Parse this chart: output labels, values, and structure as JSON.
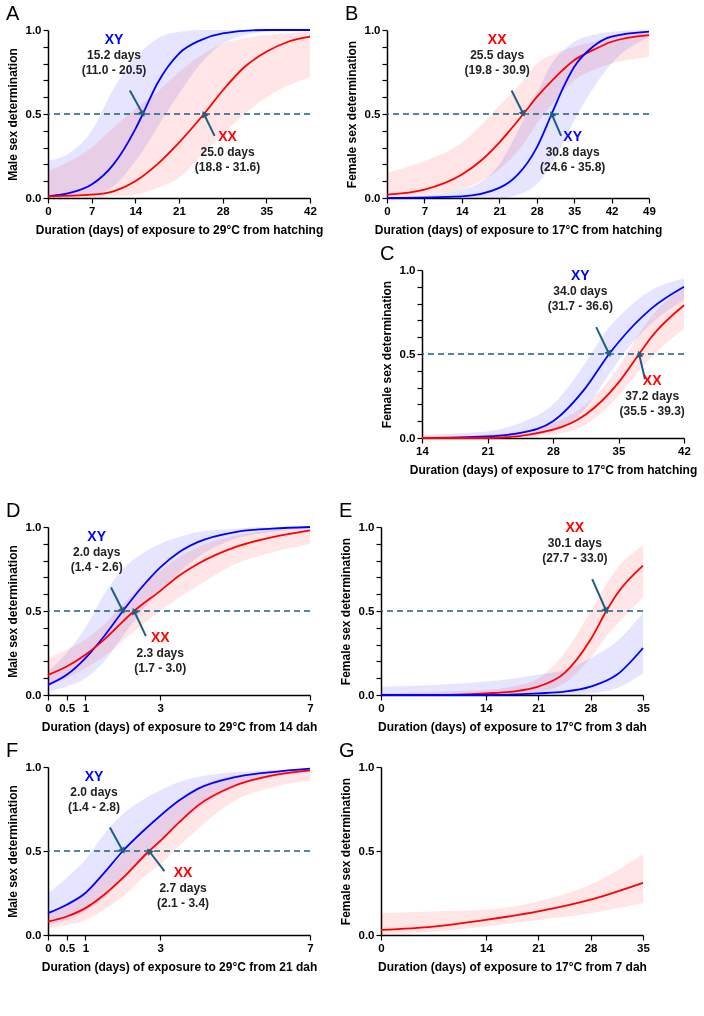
{
  "chart_data": [
    {
      "type": "line",
      "title": "A",
      "xlabel": "Duration (days) of exposure to 29°C from hatching",
      "ylabel": "Male sex determination",
      "xlim": [
        0,
        42
      ],
      "xticks": [
        0,
        7,
        14,
        21,
        28,
        35,
        42
      ],
      "ylim": [
        0,
        1
      ],
      "yticks": [
        {
          "value": 0,
          "label": "0.0"
        },
        {
          "value": 0.1,
          "label": null
        },
        {
          "value": 0.2,
          "label": null
        },
        {
          "value": 0.3,
          "label": null
        },
        {
          "value": 0.4,
          "label": null
        },
        {
          "value": 0.5,
          "label": "0.5"
        },
        {
          "value": 0.6,
          "label": null
        },
        {
          "value": 0.7,
          "label": null
        },
        {
          "value": 0.8,
          "label": null
        },
        {
          "value": 0.9,
          "label": null
        },
        {
          "value": 1,
          "label": "1.0"
        }
      ],
      "series": [
        {
          "name": "XY",
          "color": "#0000ff",
          "x": [
            0,
            3.5,
            7,
            10.5,
            14,
            15.2,
            17.5,
            21,
            24.5,
            28,
            35,
            42
          ],
          "values": [
            0.01,
            0.03,
            0.08,
            0.2,
            0.41,
            0.5,
            0.68,
            0.86,
            0.94,
            0.98,
            1.0,
            1.0
          ],
          "lower": [
            0,
            0.01,
            0.02,
            0.07,
            0.22,
            0.28,
            0.42,
            0.62,
            0.8,
            0.92,
            0.99,
            1.0
          ],
          "upper": [
            0.22,
            0.27,
            0.4,
            0.65,
            0.84,
            0.88,
            0.95,
            0.99,
            1.0,
            1.0,
            1.0,
            1.0
          ]
        },
        {
          "name": "XX",
          "color": "#ff0000",
          "x": [
            0,
            7,
            10.5,
            14,
            17.5,
            21,
            25,
            28,
            31.5,
            35,
            38.5,
            42
          ],
          "values": [
            0.01,
            0.02,
            0.04,
            0.1,
            0.2,
            0.33,
            0.5,
            0.64,
            0.78,
            0.87,
            0.93,
            0.96
          ],
          "lower": [
            0,
            0,
            0.01,
            0.02,
            0.06,
            0.12,
            0.27,
            0.38,
            0.5,
            0.6,
            0.67,
            0.72
          ],
          "upper": [
            0.16,
            0.3,
            0.42,
            0.53,
            0.63,
            0.75,
            0.86,
            0.92,
            0.95,
            0.97,
            0.98,
            0.99
          ]
        }
      ],
      "ref_lines": [
        {
          "axis": "y",
          "value": 0.5,
          "color": "#1f5f80",
          "line_style": "dashed"
        }
      ],
      "annotations": [
        {
          "text": "15.2 days\n(11.0 - 20.5)",
          "x": 15.2,
          "y": 0.5
        },
        {
          "text": "25.0 days\n(18.8 - 31.6)",
          "x": 25.0,
          "y": 0.5
        }
      ]
    },
    {
      "type": "line",
      "title": "B",
      "xlabel": "Duration (days) of exposure to 17°C from hatching",
      "ylabel": "Female sex determination",
      "xlim": [
        0,
        49
      ],
      "xticks": [
        0,
        7,
        14,
        21,
        28,
        35,
        42,
        49
      ],
      "ylim": [
        0,
        1
      ],
      "yticks": [
        {
          "value": 0,
          "label": "0.0"
        },
        {
          "value": 0.1,
          "label": null
        },
        {
          "value": 0.2,
          "label": null
        },
        {
          "value": 0.3,
          "label": null
        },
        {
          "value": 0.4,
          "label": null
        },
        {
          "value": 0.5,
          "label": "0.5"
        },
        {
          "value": 0.6,
          "label": null
        },
        {
          "value": 0.7,
          "label": null
        },
        {
          "value": 0.8,
          "label": null
        },
        {
          "value": 0.9,
          "label": null
        },
        {
          "value": 1,
          "label": "1.0"
        }
      ],
      "series": [
        {
          "name": "XX",
          "color": "#ff0000",
          "x": [
            0,
            7,
            14,
            17.5,
            21,
            25.5,
            28,
            31.5,
            35,
            38.5,
            42,
            49
          ],
          "values": [
            0.02,
            0.05,
            0.14,
            0.22,
            0.33,
            0.5,
            0.6,
            0.72,
            0.82,
            0.88,
            0.93,
            0.97
          ],
          "lower": [
            0,
            0.02,
            0.05,
            0.1,
            0.17,
            0.32,
            0.44,
            0.58,
            0.7,
            0.76,
            0.8,
            0.84
          ],
          "upper": [
            0.15,
            0.22,
            0.33,
            0.43,
            0.55,
            0.7,
            0.8,
            0.86,
            0.9,
            0.93,
            0.96,
            0.99
          ]
        },
        {
          "name": "XY",
          "color": "#0000ff",
          "x": [
            0,
            14,
            21,
            24.5,
            28,
            30.8,
            33,
            35,
            38.5,
            42,
            49
          ],
          "values": [
            0,
            0.01,
            0.06,
            0.14,
            0.3,
            0.5,
            0.66,
            0.78,
            0.9,
            0.96,
            0.99
          ],
          "lower": [
            0,
            0,
            0,
            0.02,
            0.08,
            0.2,
            0.33,
            0.46,
            0.65,
            0.8,
            0.96
          ],
          "upper": [
            0,
            0.05,
            0.2,
            0.4,
            0.62,
            0.8,
            0.88,
            0.93,
            0.97,
            0.99,
            1.0
          ]
        }
      ],
      "ref_lines": [
        {
          "axis": "y",
          "value": 0.5,
          "color": "#1f5f80",
          "line_style": "dashed"
        }
      ],
      "annotations": [
        {
          "text": "25.5 days\n(19.8 - 30.9)",
          "x": 25.5,
          "y": 0.5
        },
        {
          "text": "30.8 days\n(24.6 - 35.8)",
          "x": 30.8,
          "y": 0.5
        }
      ]
    },
    {
      "type": "line",
      "title": "C",
      "xlabel": "Duration (days) of exposure to 17°C from hatching",
      "ylabel": "Female sex determination",
      "xlim": [
        14,
        42
      ],
      "xticks": [
        14,
        21,
        28,
        35,
        42
      ],
      "ylim": [
        0,
        1
      ],
      "yticks": [
        {
          "value": 0,
          "label": "0.0"
        },
        {
          "value": 0.1,
          "label": null
        },
        {
          "value": 0.2,
          "label": null
        },
        {
          "value": 0.3,
          "label": null
        },
        {
          "value": 0.4,
          "label": null
        },
        {
          "value": 0.5,
          "label": "0.5"
        },
        {
          "value": 0.6,
          "label": null
        },
        {
          "value": 0.7,
          "label": null
        },
        {
          "value": 0.8,
          "label": null
        },
        {
          "value": 0.9,
          "label": null
        },
        {
          "value": 1,
          "label": "1.0"
        }
      ],
      "series": [
        {
          "name": "XY",
          "color": "#0000ff",
          "x": [
            14,
            21,
            24.5,
            28,
            31.5,
            34,
            35,
            38.5,
            42
          ],
          "values": [
            0,
            0.01,
            0.03,
            0.1,
            0.3,
            0.5,
            0.57,
            0.77,
            0.9
          ],
          "lower": [
            0,
            0,
            0.01,
            0.04,
            0.18,
            0.38,
            0.46,
            0.68,
            0.82
          ],
          "upper": [
            0.02,
            0.04,
            0.09,
            0.2,
            0.45,
            0.66,
            0.72,
            0.88,
            0.95
          ]
        },
        {
          "name": "XX",
          "color": "#ff0000",
          "x": [
            14,
            21,
            28,
            31.5,
            35,
            37.2,
            38.5,
            42
          ],
          "values": [
            0,
            0,
            0.05,
            0.14,
            0.33,
            0.5,
            0.6,
            0.79
          ],
          "lower": [
            0,
            0,
            0.02,
            0.08,
            0.25,
            0.4,
            0.48,
            0.65
          ],
          "upper": [
            0.01,
            0.02,
            0.09,
            0.2,
            0.42,
            0.62,
            0.72,
            0.9
          ]
        }
      ],
      "ref_lines": [
        {
          "axis": "y",
          "value": 0.5,
          "color": "#1f5f80",
          "line_style": "dashed"
        }
      ],
      "annotations": [
        {
          "text": "34.0 days\n(31.7 - 36.6)",
          "x": 34.0,
          "y": 0.5
        },
        {
          "text": "37.2 days\n(35.5 - 39.3)",
          "x": 37.2,
          "y": 0.5
        }
      ]
    },
    {
      "type": "line",
      "title": "D",
      "xlabel": "Duration (days) of exposure to 29°C from 14 dah",
      "ylabel": "Male sex determination",
      "xlim": [
        0,
        7
      ],
      "xticks": [
        0,
        0.5,
        1,
        3,
        7
      ],
      "ylim": [
        0,
        1
      ],
      "yticks": [
        {
          "value": 0,
          "label": "0.0"
        },
        {
          "value": 0.1,
          "label": null
        },
        {
          "value": 0.2,
          "label": null
        },
        {
          "value": 0.3,
          "label": null
        },
        {
          "value": 0.4,
          "label": null
        },
        {
          "value": 0.5,
          "label": "0.5"
        },
        {
          "value": 0.6,
          "label": null
        },
        {
          "value": 0.7,
          "label": null
        },
        {
          "value": 0.8,
          "label": null
        },
        {
          "value": 0.9,
          "label": null
        },
        {
          "value": 1,
          "label": "1.0"
        }
      ],
      "series": [
        {
          "name": "XY",
          "color": "#0000ff",
          "x": [
            0,
            0.5,
            1,
            1.5,
            2,
            2.5,
            3,
            3.5,
            4,
            5,
            6,
            7
          ],
          "values": [
            0.06,
            0.12,
            0.22,
            0.35,
            0.5,
            0.64,
            0.76,
            0.85,
            0.91,
            0.97,
            0.99,
            1.0
          ],
          "lower": [
            0.02,
            0.05,
            0.1,
            0.2,
            0.35,
            0.5,
            0.62,
            0.73,
            0.82,
            0.93,
            0.97,
            0.99
          ],
          "upper": [
            0.14,
            0.25,
            0.4,
            0.6,
            0.75,
            0.84,
            0.9,
            0.94,
            0.97,
            0.99,
            1.0,
            1.0
          ]
        },
        {
          "name": "XX",
          "color": "#ff0000",
          "x": [
            0,
            0.5,
            1,
            1.5,
            2.3,
            3,
            3.5,
            4,
            5,
            6,
            7
          ],
          "values": [
            0.12,
            0.17,
            0.24,
            0.33,
            0.5,
            0.62,
            0.71,
            0.78,
            0.88,
            0.94,
            0.98
          ],
          "lower": [
            0.06,
            0.1,
            0.16,
            0.23,
            0.38,
            0.5,
            0.58,
            0.65,
            0.78,
            0.85,
            0.9
          ],
          "upper": [
            0.22,
            0.27,
            0.33,
            0.42,
            0.61,
            0.74,
            0.82,
            0.88,
            0.95,
            0.98,
            0.99
          ]
        }
      ],
      "ref_lines": [
        {
          "axis": "y",
          "value": 0.5,
          "color": "#1f5f80",
          "line_style": "dashed"
        }
      ],
      "annotations": [
        {
          "text": "2.0 days\n(1.4 - 2.6)",
          "x": 2.0,
          "y": 0.5
        },
        {
          "text": "2.3 days\n(1.7 - 3.0)",
          "x": 2.3,
          "y": 0.5
        }
      ]
    },
    {
      "type": "line",
      "title": "E",
      "xlabel": "Duration (days) of exposure to 17°C from 3 dah",
      "ylabel": "Female sex determination",
      "xlim": [
        0,
        35
      ],
      "xticks": [
        0,
        14,
        21,
        28,
        35
      ],
      "ylim": [
        0,
        1
      ],
      "yticks": [
        {
          "value": 0,
          "label": "0.0"
        },
        {
          "value": 0.1,
          "label": null
        },
        {
          "value": 0.2,
          "label": null
        },
        {
          "value": 0.3,
          "label": null
        },
        {
          "value": 0.4,
          "label": null
        },
        {
          "value": 0.5,
          "label": "0.5"
        },
        {
          "value": 0.6,
          "label": null
        },
        {
          "value": 0.7,
          "label": null
        },
        {
          "value": 0.8,
          "label": null
        },
        {
          "value": 0.9,
          "label": null
        },
        {
          "value": 1,
          "label": "1.0"
        }
      ],
      "series": [
        {
          "name": "XX",
          "color": "#ff0000",
          "x": [
            0,
            7,
            14,
            17.5,
            21,
            24.5,
            28,
            30.1,
            31.5,
            35
          ],
          "values": [
            0,
            0,
            0.01,
            0.02,
            0.05,
            0.13,
            0.33,
            0.5,
            0.6,
            0.77
          ],
          "lower": [
            0,
            0,
            0,
            0.01,
            0.02,
            0.07,
            0.22,
            0.35,
            0.42,
            0.58
          ],
          "upper": [
            0.01,
            0.02,
            0.03,
            0.05,
            0.1,
            0.25,
            0.5,
            0.66,
            0.75,
            0.89
          ]
        },
        {
          "color": "#0000ff",
          "x": [
            0,
            7,
            14,
            21,
            24.5,
            28,
            31.5,
            35
          ],
          "values": [
            0,
            0,
            0,
            0.01,
            0.02,
            0.05,
            0.12,
            0.28
          ],
          "lower": [
            0,
            0,
            0,
            0,
            0,
            0.01,
            0.04,
            0.13
          ],
          "upper": [
            0.05,
            0.06,
            0.08,
            0.12,
            0.15,
            0.22,
            0.32,
            0.49
          ]
        }
      ],
      "ref_lines": [
        {
          "axis": "y",
          "value": 0.5,
          "color": "#1f5f80",
          "line_style": "dashed"
        }
      ],
      "annotations": [
        {
          "text": "30.1 days\n(27.7 - 33.0)",
          "x": 30.1,
          "y": 0.5
        }
      ]
    },
    {
      "type": "line",
      "title": "F",
      "xlabel": "Duration (days) of exposure to 29°C from 21 dah",
      "ylabel": "Male sex determination",
      "xlim": [
        0,
        7
      ],
      "xticks": [
        0,
        0.5,
        1,
        3,
        7
      ],
      "ylim": [
        0,
        1
      ],
      "yticks": [
        {
          "value": 0,
          "label": "0.0"
        },
        {
          "value": 0.5,
          "label": "0.5"
        },
        {
          "value": 1,
          "label": "1.0"
        }
      ],
      "series": [
        {
          "name": "XY",
          "color": "#0000ff",
          "x": [
            0,
            0.5,
            1,
            1.5,
            2,
            2.5,
            3,
            3.5,
            4,
            5,
            6,
            7
          ],
          "values": [
            0.13,
            0.18,
            0.25,
            0.37,
            0.5,
            0.61,
            0.71,
            0.8,
            0.87,
            0.94,
            0.97,
            0.99
          ],
          "lower": [
            0.06,
            0.09,
            0.14,
            0.22,
            0.33,
            0.44,
            0.55,
            0.66,
            0.75,
            0.88,
            0.94,
            0.97
          ],
          "upper": [
            0.25,
            0.34,
            0.45,
            0.6,
            0.72,
            0.8,
            0.86,
            0.91,
            0.94,
            0.97,
            0.98,
            0.99
          ]
        },
        {
          "name": "XX",
          "color": "#ff0000",
          "x": [
            0,
            0.5,
            1,
            1.5,
            2,
            2.7,
            3,
            3.5,
            4,
            5,
            6,
            7
          ],
          "values": [
            0.08,
            0.11,
            0.16,
            0.24,
            0.34,
            0.5,
            0.56,
            0.67,
            0.77,
            0.89,
            0.95,
            0.98
          ],
          "lower": [
            0.04,
            0.06,
            0.09,
            0.15,
            0.23,
            0.37,
            0.42,
            0.53,
            0.63,
            0.8,
            0.88,
            0.92
          ],
          "upper": [
            0.13,
            0.19,
            0.26,
            0.36,
            0.48,
            0.64,
            0.7,
            0.8,
            0.88,
            0.95,
            0.97,
            0.99
          ]
        }
      ],
      "ref_lines": [
        {
          "axis": "y",
          "value": 0.5,
          "color": "#1f5f80",
          "line_style": "dashed"
        }
      ],
      "annotations": [
        {
          "text": "2.0 days\n(1.4 - 2.8)",
          "x": 2.0,
          "y": 0.5
        },
        {
          "text": "2.7 days\n(2.1 - 3.4)",
          "x": 2.7,
          "y": 0.5
        }
      ]
    },
    {
      "type": "line",
      "title": "G",
      "xlabel": "Duration (days) of exposure to 17°C from 7 dah",
      "ylabel": "Female sex determination",
      "xlim": [
        0,
        35
      ],
      "xticks": [
        0,
        14,
        21,
        28,
        35
      ],
      "ylim": [
        0,
        1
      ],
      "yticks": [
        {
          "value": 0,
          "label": "0.0"
        },
        {
          "value": 0.5,
          "label": "0.5"
        },
        {
          "value": 1,
          "label": "1.0"
        }
      ],
      "series": [
        {
          "color": "#ff0000",
          "x": [
            0,
            7,
            14,
            21,
            28,
            35
          ],
          "values": [
            0.03,
            0.05,
            0.09,
            0.14,
            0.21,
            0.31
          ],
          "lower": [
            0,
            0.02,
            0.05,
            0.09,
            0.13,
            0.19
          ],
          "upper": [
            0.13,
            0.14,
            0.15,
            0.2,
            0.3,
            0.48
          ]
        }
      ]
    }
  ]
}
